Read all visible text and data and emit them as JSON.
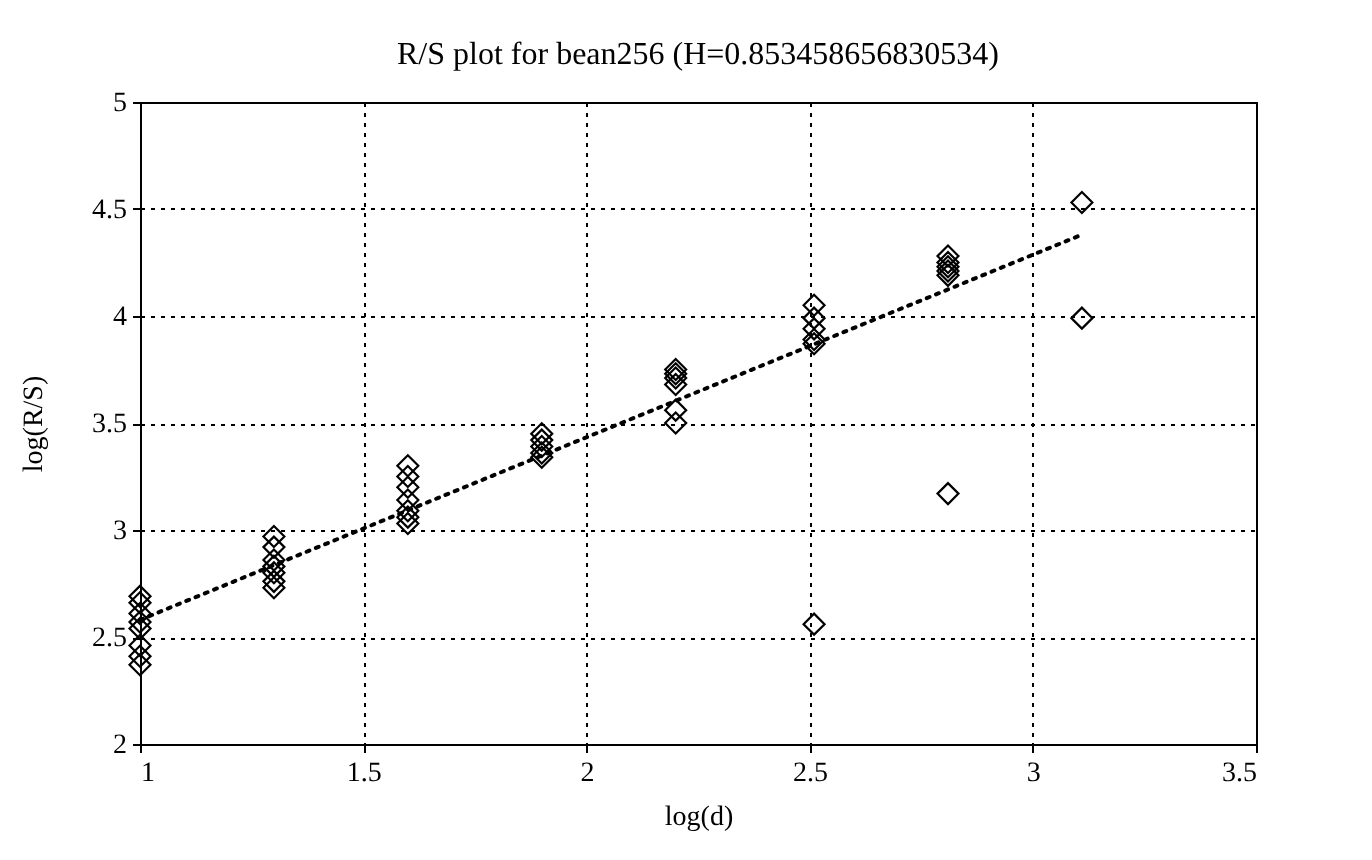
{
  "chart_data": {
    "type": "scatter",
    "title": "R/S plot for bean256 (H=0.853458656830534)",
    "xlabel": "log(d)",
    "ylabel": "log(R/S)",
    "xlim": [
      1,
      3.5
    ],
    "xticks": [
      1,
      1.5,
      2,
      2.5,
      3,
      3.5
    ],
    "ylim": [
      2,
      5
    ],
    "yticks": [
      2,
      2.5,
      3,
      3.5,
      4,
      4.5,
      5
    ],
    "grid": true,
    "marker": "diamond",
    "series": [
      {
        "color": "#000000",
        "x": [
          1,
          1,
          1,
          1,
          1,
          1,
          1,
          1,
          1.3,
          1.3,
          1.3,
          1.3,
          1.3,
          1.3,
          1.3,
          1.6,
          1.6,
          1.6,
          1.6,
          1.6,
          1.6,
          1.6,
          1.9,
          1.9,
          1.9,
          1.9,
          1.9,
          2.2,
          2.2,
          2.2,
          2.2,
          2.2,
          2.2,
          2.51,
          2.51,
          2.51,
          2.51,
          2.51,
          2.51,
          2.81,
          2.81,
          2.81,
          2.81,
          2.81,
          2.81,
          3.11,
          3.11
        ],
        "values": [
          2.69,
          2.66,
          2.61,
          2.57,
          2.54,
          2.46,
          2.41,
          2.37,
          2.97,
          2.92,
          2.86,
          2.83,
          2.8,
          2.76,
          2.73,
          3.3,
          3.25,
          3.2,
          3.14,
          3.09,
          3.06,
          3.03,
          3.45,
          3.42,
          3.39,
          3.36,
          3.34,
          3.75,
          3.73,
          3.71,
          3.68,
          3.56,
          3.5,
          4.05,
          3.99,
          3.94,
          3.89,
          3.87,
          2.56,
          4.28,
          4.25,
          4.23,
          4.21,
          4.19,
          3.17,
          4.53,
          3.99
        ]
      },
      {
        "type": "line",
        "color": "#000000",
        "marker": "none",
        "line_style": "dotted",
        "x": [
          1,
          3.11
        ],
        "values": [
          2.58,
          4.38
        ]
      }
    ]
  }
}
